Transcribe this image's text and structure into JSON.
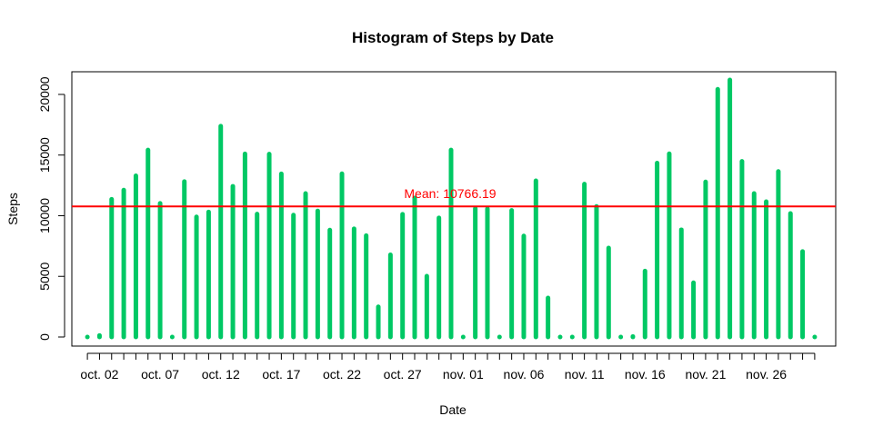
{
  "chart_data": {
    "type": "bar",
    "title": "Histogram of Steps by Date",
    "xlabel": "Date",
    "ylabel": "Steps",
    "ylim": [
      0,
      21194
    ],
    "y_ticks": [
      0,
      5000,
      10000,
      15000,
      20000
    ],
    "bar_color": "#00C864",
    "grid": false,
    "categories": [
      "oct. 01",
      "oct. 02",
      "oct. 03",
      "oct. 04",
      "oct. 05",
      "oct. 06",
      "oct. 07",
      "oct. 08",
      "oct. 09",
      "oct. 10",
      "oct. 11",
      "oct. 12",
      "oct. 13",
      "oct. 14",
      "oct. 15",
      "oct. 16",
      "oct. 17",
      "oct. 18",
      "oct. 19",
      "oct. 20",
      "oct. 21",
      "oct. 22",
      "oct. 23",
      "oct. 24",
      "oct. 25",
      "oct. 26",
      "oct. 27",
      "oct. 28",
      "oct. 29",
      "oct. 30",
      "oct. 31",
      "nov. 01",
      "nov. 02",
      "nov. 03",
      "nov. 04",
      "nov. 05",
      "nov. 06",
      "nov. 07",
      "nov. 08",
      "nov. 09",
      "nov. 10",
      "nov. 11",
      "nov. 12",
      "nov. 13",
      "nov. 14",
      "nov. 15",
      "nov. 16",
      "nov. 17",
      "nov. 18",
      "nov. 19",
      "nov. 20",
      "nov. 21",
      "nov. 22",
      "nov. 23",
      "nov. 24",
      "nov. 25",
      "nov. 26",
      "nov. 27",
      "nov. 28",
      "nov. 29",
      "nov. 30"
    ],
    "x_tick_labels": [
      {
        "index": 1,
        "label": "oct. 02"
      },
      {
        "index": 6,
        "label": "oct. 07"
      },
      {
        "index": 11,
        "label": "oct. 12"
      },
      {
        "index": 16,
        "label": "oct. 17"
      },
      {
        "index": 21,
        "label": "oct. 22"
      },
      {
        "index": 26,
        "label": "oct. 27"
      },
      {
        "index": 31,
        "label": "nov. 01"
      },
      {
        "index": 36,
        "label": "nov. 06"
      },
      {
        "index": 41,
        "label": "nov. 11"
      },
      {
        "index": 46,
        "label": "nov. 16"
      },
      {
        "index": 51,
        "label": "nov. 21"
      },
      {
        "index": 56,
        "label": "nov. 26"
      }
    ],
    "values": [
      0,
      126,
      11352,
      12116,
      13294,
      15420,
      11015,
      0,
      12811,
      9900,
      10304,
      17382,
      12426,
      15098,
      10139,
      15084,
      13452,
      10056,
      11829,
      10395,
      8821,
      13460,
      8918,
      8355,
      2492,
      6778,
      10119,
      11458,
      5018,
      9819,
      15414,
      0,
      10600,
      10571,
      0,
      10439,
      8334,
      12883,
      3219,
      0,
      0,
      12608,
      10765,
      7336,
      0,
      41,
      5441,
      14339,
      15110,
      8841,
      4472,
      12787,
      20427,
      21194,
      14478,
      11834,
      11162,
      13646,
      10183,
      7047,
      0
    ],
    "mean_line": {
      "value": 10766.19,
      "label": "Mean:  10766.19",
      "color": "#FF0000"
    }
  }
}
